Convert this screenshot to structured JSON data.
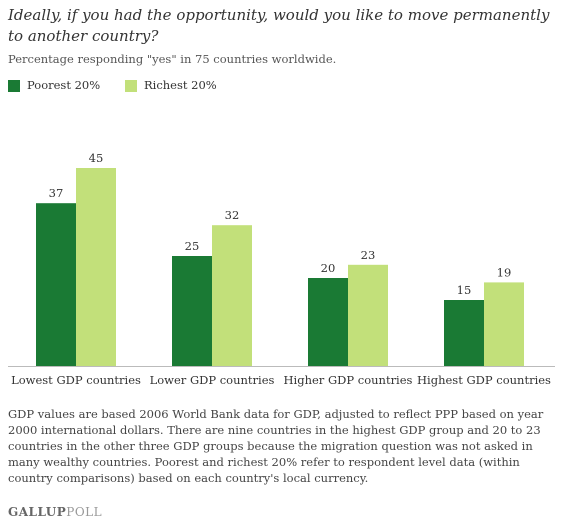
{
  "header": {
    "title": "Ideally, if you had the opportunity, would you like to move permanently to another country?",
    "subtitle": "Percentage responding \"yes\" in 75 countries worldwide."
  },
  "chart_data": {
    "type": "bar",
    "categories": [
      "Lowest GDP countries",
      "Lower GDP countries",
      "Higher GDP countries",
      "Highest GDP countries"
    ],
    "series": [
      {
        "name": "Poorest 20%",
        "color": "#1a7a34",
        "values": [
          37,
          25,
          20,
          15
        ]
      },
      {
        "name": "Richest 20%",
        "color": "#c2e07a",
        "values": [
          45,
          32,
          23,
          19
        ]
      }
    ],
    "ylim": [
      0,
      50
    ],
    "grid": false,
    "legend_position": "top-left"
  },
  "footnote": "GDP values are based 2006 World Bank data for GDP, adjusted to reflect PPP based on year 2000 international dollars. There are nine countries in the highest GDP group and 20 to 23 countries in the other three GDP groups because the migration question was not asked in many wealthy countries. Poorest and richest 20% refer to respondent level data (within country comparisons) based on each country's local currency.",
  "logo": {
    "brand": "GALLUP",
    "product": "POLL"
  }
}
